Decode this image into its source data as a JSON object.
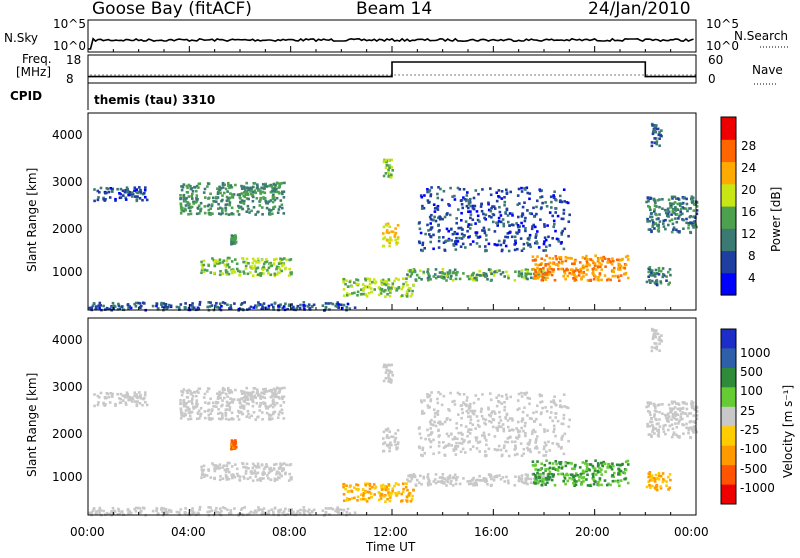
{
  "header": {
    "station": "Goose Bay (fitACF)",
    "beam": "Beam 14",
    "date": "24/Jan/2010"
  },
  "noise_panel": {
    "left_label": "N.Sky",
    "left_ticks": [
      "10^5",
      "10^0"
    ],
    "right_label": "N.Search",
    "right_ticks": [
      "10^5",
      "10^0"
    ]
  },
  "freq_panel": {
    "left_label_top": "Freq.",
    "left_label_unit": "[MHz]",
    "left_ticks": [
      "18",
      "8"
    ],
    "right_label": "Nave",
    "right_ticks": [
      "60",
      "0"
    ],
    "cpid_label": "CPID",
    "cpid_text": "themis (tau) 3310"
  },
  "x_axis": {
    "ticks": [
      "00:00",
      "04:00",
      "08:00",
      "12:00",
      "16:00",
      "20:00",
      "00:00"
    ],
    "label": "Time UT"
  },
  "power_panel": {
    "ylabel": "Slant Range [km]",
    "yticks": [
      "4000",
      "3000",
      "2000",
      "1000"
    ],
    "colorbar_label": "Power [dB]",
    "colorbar_ticks": [
      "28",
      "24",
      "20",
      "16",
      "12",
      "8",
      "4"
    ],
    "colors": [
      "#0000ff",
      "#1e3fa0",
      "#3a7a73",
      "#4da04d",
      "#c8e614",
      "#ffaa00",
      "#ff6600",
      "#ee0000"
    ]
  },
  "velocity_panel": {
    "ylabel": "Slant Range [km]",
    "yticks": [
      "4000",
      "3000",
      "2000",
      "1000"
    ],
    "colorbar_label": "Velocity [m s⁻¹]",
    "colorbar_ticks": [
      "1000",
      "500",
      "100",
      "25",
      "-25",
      "-100",
      "-500",
      "-1000"
    ],
    "colors": [
      "#1d2ec8",
      "#2f5fa8",
      "#2e8b3a",
      "#66cc33",
      "#c8c8c8",
      "#ffcc00",
      "#ff9900",
      "#ff5500",
      "#ee0000"
    ]
  },
  "chart_data": {
    "type": "heatmap",
    "x_range_hours": [
      0,
      24
    ],
    "y_range_km": [
      180,
      4500
    ],
    "frequency": {
      "ylim_mhz": [
        8,
        18
      ],
      "segments": [
        {
          "start_h": 0,
          "end_h": 12,
          "mhz": 10.3
        },
        {
          "start_h": 12,
          "end_h": 22,
          "mhz": 15.5
        },
        {
          "start_h": 22,
          "end_h": 24,
          "mhz": 10.3
        }
      ]
    },
    "echo_regions": [
      {
        "t_start": 0.2,
        "t_end": 2.3,
        "r_start": 2600,
        "r_end": 2900,
        "power_db": 6,
        "velocity": 0
      },
      {
        "t_start": 3.6,
        "t_end": 7.7,
        "r_start": 2300,
        "r_end": 3000,
        "power_db": 12,
        "velocity": 0
      },
      {
        "t_start": 4.4,
        "t_end": 8.0,
        "r_start": 950,
        "r_end": 1350,
        "power_db": 16,
        "velocity": 0
      },
      {
        "t_start": 0.0,
        "t_end": 10.5,
        "r_start": 200,
        "r_end": 380,
        "power_db": 7,
        "velocity": 0
      },
      {
        "t_start": 10.0,
        "t_end": 12.8,
        "r_start": 500,
        "r_end": 900,
        "power_db": 16,
        "velocity": -100
      },
      {
        "t_start": 11.6,
        "t_end": 12.2,
        "r_start": 1600,
        "r_end": 2100,
        "power_db": 20,
        "velocity": 0
      },
      {
        "t_start": 11.6,
        "t_end": 12.0,
        "r_start": 3100,
        "r_end": 3500,
        "power_db": 16,
        "velocity": 0
      },
      {
        "t_start": 12.5,
        "t_end": 18.0,
        "r_start": 850,
        "r_end": 1100,
        "power_db": 14,
        "velocity": 0
      },
      {
        "t_start": 13.0,
        "t_end": 19.0,
        "r_start": 1500,
        "r_end": 2900,
        "power_db": 6,
        "velocity": 0
      },
      {
        "t_start": 17.5,
        "t_end": 21.3,
        "r_start": 850,
        "r_end": 1400,
        "power_db": 24,
        "velocity": 100
      },
      {
        "t_start": 22.0,
        "t_end": 24.0,
        "r_start": 1900,
        "r_end": 2700,
        "power_db": 10,
        "velocity": 0
      },
      {
        "t_start": 22.0,
        "t_end": 23.0,
        "r_start": 750,
        "r_end": 1150,
        "power_db": 10,
        "velocity": -100
      },
      {
        "t_start": 22.2,
        "t_end": 22.6,
        "r_start": 3800,
        "r_end": 4300,
        "power_db": 8,
        "velocity": 0
      },
      {
        "t_start": 5.6,
        "t_end": 5.8,
        "r_start": 1650,
        "r_end": 1850,
        "power_db": 12,
        "velocity": -500
      }
    ]
  }
}
